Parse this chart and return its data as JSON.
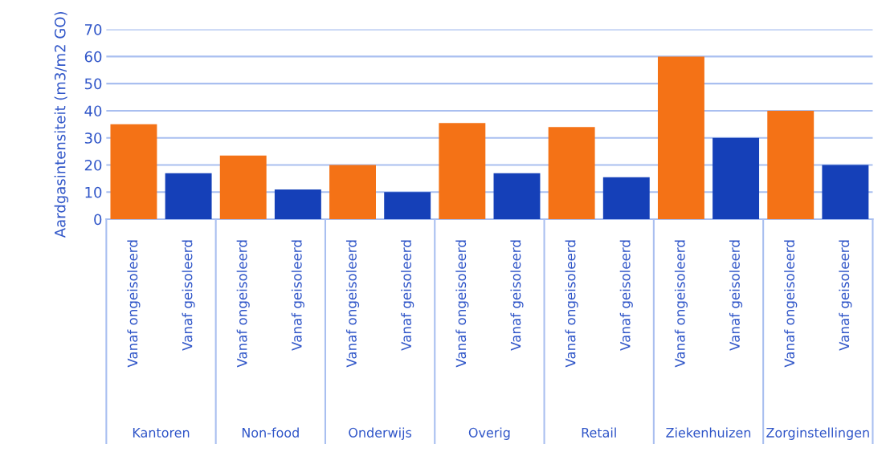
{
  "chart_data": {
    "type": "bar",
    "ylabel": "Aardgasintensiteit (m3/m2 GO)",
    "categories": [
      "Vanaf ongeisoleerd",
      "Vanaf geisoleerd",
      "Vanaf ongeisoleerd",
      "Vanaf geisoleerd",
      "Vanaf ongeisoleerd",
      "Vanaf geisoleerd",
      "Vanaf ongeisoleerd",
      "Vanaf geisoleerd",
      "Vanaf ongeisoleerd",
      "Vanaf geisoleerd",
      "Vanaf ongeisoleerd",
      "Vanaf geisoleerd",
      "Vanaf ongeisoleerd",
      "Vanaf geisoleerd"
    ],
    "values": [
      35,
      17,
      23.5,
      11,
      20,
      10,
      35.5,
      17,
      34,
      15.5,
      60,
      30,
      40,
      20
    ],
    "colors": [
      "#f47216",
      "#1540b8",
      "#f47216",
      "#1540b8",
      "#f47216",
      "#1540b8",
      "#f47216",
      "#1540b8",
      "#f47216",
      "#1540b8",
      "#f47216",
      "#1540b8",
      "#f47216",
      "#1540b8"
    ],
    "annotations": [
      "Kantoren",
      "Non-food",
      "Onderwijs",
      "Overig",
      "Retail",
      "Ziekenhuizen",
      "Zorginstellingen"
    ],
    "ylim": [
      0,
      70
    ],
    "yticks": [
      0,
      10,
      20,
      30,
      40,
      50,
      60,
      70
    ],
    "grid": "y"
  }
}
